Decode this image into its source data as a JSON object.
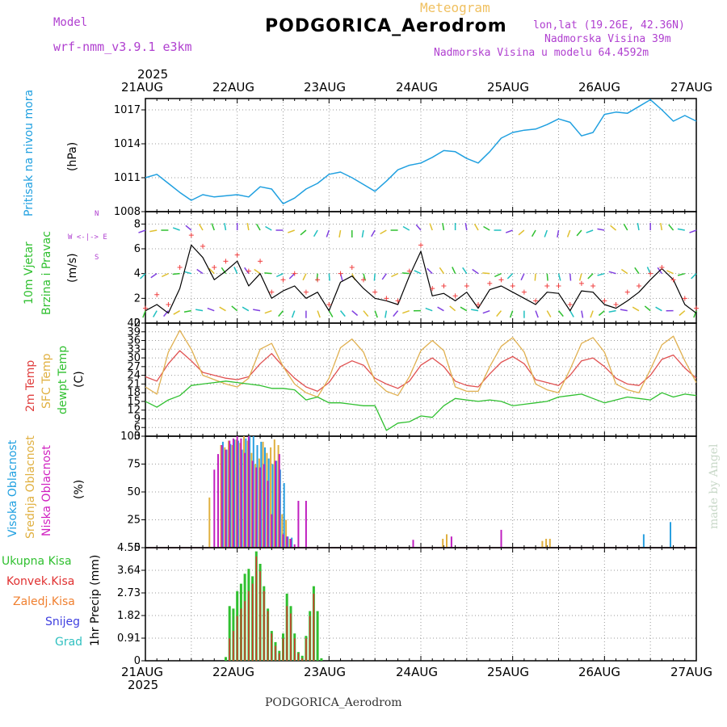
{
  "header": {
    "model_label": "Model",
    "model_name": "wrf-nmm_v3.9.1 e3km",
    "chart_kind": "Meteogram",
    "station": "PODGORICA_Aerodrom",
    "coords": "lon,lat (19.26E, 42.36N)",
    "altitude": "Nadmorska Visina 39m",
    "model_altitude": "Nadmorska Visina u modelu 64.4592m",
    "footer_station": "PODGORICA_Aerodrom",
    "credit": "made by Angel"
  },
  "time_axis": {
    "year": "2025",
    "labels": [
      "21AUG",
      "22AUG",
      "23AUG",
      "24AUG",
      "25AUG",
      "26AUG",
      "27AUG"
    ]
  },
  "panel_labels": {
    "pressure": [
      "Pritisak na nivou mora",
      "(hPa)"
    ],
    "wind": [
      "10m Vjetar",
      "Brzina i Pravac",
      "(m/s)"
    ],
    "compass": [
      "N",
      "W <-|-> E",
      "S"
    ],
    "temp": [
      "2m Temp",
      "SFC Temp",
      "dewpt Temp",
      "(C)"
    ],
    "cloud": [
      "Visoka Oblacnost",
      "Srednja Oblacnost",
      "Niska Oblacnost",
      "(%)"
    ],
    "precip_legend": [
      "Ukupna Kisa",
      "Konvek.Kisa",
      "Zaledj.Kisa",
      "Snijeg",
      "Grad"
    ],
    "precip_axis": "1hr Precip (mm)"
  },
  "colors": {
    "pressure": "#20a0e0",
    "temp2m": "#e05050",
    "sfc": "#e0b050",
    "dewpt": "#30c030",
    "high_cloud": "#2aa0e0",
    "mid_cloud": "#e0b040",
    "low_cloud": "#c020c0",
    "total_rain": "#30c030",
    "conv_rain": "#e03030",
    "freeze_rain": "#f08030",
    "snow": "#4040e0",
    "hail": "#30c0c0",
    "wind_line": "#000000",
    "gust": "#f04040"
  },
  "chart_data": [
    {
      "type": "line",
      "name": "pressure",
      "title": "Pritisak na nivou mora",
      "ylabel": "hPa",
      "ylim": [
        1008,
        1018
      ],
      "yticks": [
        1008,
        1011,
        1014,
        1017
      ],
      "xlim": [
        0,
        144
      ],
      "x": [
        0,
        3,
        6,
        9,
        12,
        15,
        18,
        21,
        24,
        27,
        30,
        33,
        36,
        39,
        42,
        45,
        48,
        51,
        54,
        57,
        60,
        63,
        66,
        69,
        72,
        75,
        78,
        81,
        84,
        87,
        90,
        93,
        96,
        99,
        102,
        105,
        108,
        111,
        114,
        117,
        120,
        123,
        126,
        129,
        132,
        135,
        138,
        141,
        144
      ],
      "values": [
        1011.0,
        1011.3,
        1010.5,
        1009.7,
        1009.0,
        1009.5,
        1009.3,
        1009.4,
        1009.5,
        1009.3,
        1010.2,
        1010.0,
        1008.7,
        1009.2,
        1010.0,
        1010.5,
        1011.3,
        1011.5,
        1011.0,
        1010.4,
        1009.8,
        1010.7,
        1011.7,
        1012.1,
        1012.3,
        1012.8,
        1013.4,
        1013.3,
        1012.7,
        1012.3,
        1013.3,
        1014.5,
        1015.0,
        1015.2,
        1015.3,
        1015.7,
        1016.2,
        1015.9,
        1014.7,
        1015.0,
        1016.6,
        1016.8,
        1016.7,
        1017.3,
        1017.9,
        1017.0,
        1016.0,
        1016.5,
        1016.0
      ]
    },
    {
      "type": "line",
      "name": "wind",
      "title": "10m Vjetar Brzina i Pravac",
      "ylabel": "m/s",
      "ylim": [
        0,
        9
      ],
      "yticks": [
        0,
        2,
        4,
        6,
        8
      ],
      "xlim": [
        0,
        144
      ],
      "x": [
        0,
        3,
        6,
        9,
        12,
        15,
        18,
        21,
        24,
        27,
        30,
        33,
        36,
        39,
        42,
        45,
        48,
        51,
        54,
        57,
        60,
        63,
        66,
        69,
        72,
        75,
        78,
        81,
        84,
        87,
        90,
        93,
        96,
        99,
        102,
        105,
        108,
        111,
        114,
        117,
        120,
        123,
        126,
        129,
        132,
        135,
        138,
        141,
        144
      ],
      "speed": [
        1.0,
        1.5,
        0.8,
        2.8,
        6.3,
        5.3,
        3.5,
        4.2,
        5.0,
        3.0,
        4.0,
        2.0,
        2.6,
        3.0,
        2.0,
        2.5,
        1.0,
        3.3,
        3.8,
        2.8,
        2.0,
        1.8,
        1.5,
        3.8,
        5.8,
        2.2,
        2.4,
        1.8,
        2.5,
        1.2,
        2.7,
        3.0,
        2.5,
        2.0,
        1.5,
        2.5,
        2.4,
        1.0,
        2.6,
        2.5,
        1.5,
        1.2,
        1.8,
        2.5,
        3.5,
        4.4,
        3.5,
        1.5,
        0.8
      ],
      "gust": [
        1.2,
        2.3,
        1.5,
        4.5,
        7.1,
        6.2,
        4.5,
        5.0,
        5.5,
        4.2,
        5.0,
        2.5,
        3.5,
        4.0,
        2.5,
        3.5,
        1.5,
        4.0,
        4.5,
        3.5,
        2.5,
        2.0,
        1.8,
        4.2,
        6.3,
        2.8,
        3.0,
        2.2,
        3.0,
        1.5,
        3.2,
        3.5,
        3.0,
        2.5,
        1.8,
        3.0,
        3.0,
        1.5,
        3.2,
        3.0,
        1.8,
        1.5,
        2.5,
        3.0,
        4.0,
        4.5,
        3.5,
        2.0,
        1.2
      ],
      "wind_dir_deg": [
        200,
        210,
        220,
        240,
        260,
        280,
        290,
        300,
        310,
        300,
        280,
        250,
        220,
        200,
        180,
        160,
        150,
        140,
        130,
        140,
        160,
        190,
        220,
        250,
        270,
        290,
        300,
        310,
        300,
        280,
        250,
        220,
        200,
        180,
        160,
        150,
        140,
        150,
        170,
        200,
        230,
        260,
        280,
        300,
        310,
        300,
        270,
        230,
        200
      ]
    },
    {
      "type": "line",
      "name": "temperature",
      "title": "Temperature",
      "ylabel": "C",
      "ylim": [
        3,
        42
      ],
      "yticks": [
        3,
        6,
        9,
        12,
        15,
        18,
        21,
        24,
        27,
        30,
        33,
        36,
        39,
        42
      ],
      "xlim": [
        0,
        144
      ],
      "series": [
        {
          "name": "2m Temp",
          "x": [
            0,
            3,
            6,
            9,
            12,
            15,
            18,
            21,
            24,
            27,
            30,
            33,
            36,
            39,
            42,
            45,
            48,
            51,
            54,
            57,
            60,
            63,
            66,
            69,
            72,
            75,
            78,
            81,
            84,
            87,
            90,
            93,
            96,
            99,
            102,
            105,
            108,
            111,
            114,
            117,
            120,
            123,
            126,
            129,
            132,
            135,
            138,
            141,
            144
          ],
          "values": [
            23.5,
            22.0,
            28.0,
            32.5,
            29.0,
            25.0,
            24.0,
            23.0,
            22.5,
            23.5,
            28.0,
            31.5,
            27.0,
            23.0,
            20.0,
            18.5,
            21.5,
            27.0,
            29.0,
            27.5,
            23.0,
            21.0,
            19.5,
            22.0,
            27.5,
            30.0,
            27.0,
            22.0,
            20.5,
            20.0,
            24.5,
            28.5,
            30.5,
            28.0,
            22.5,
            21.5,
            20.5,
            24.0,
            29.0,
            30.0,
            27.0,
            23.0,
            21.0,
            20.5,
            24.0,
            29.5,
            31.0,
            26.5,
            23.0
          ]
        },
        {
          "name": "SFC Temp",
          "x": [
            0,
            3,
            6,
            9,
            12,
            15,
            18,
            21,
            24,
            27,
            30,
            33,
            36,
            39,
            42,
            45,
            48,
            51,
            54,
            57,
            60,
            63,
            66,
            69,
            72,
            75,
            78,
            81,
            84,
            87,
            90,
            93,
            96,
            99,
            102,
            105,
            108,
            111,
            114,
            117,
            120,
            123,
            126,
            129,
            132,
            135,
            138,
            141,
            144
          ],
          "values": [
            20.0,
            17.5,
            32.0,
            39.5,
            33.0,
            24.0,
            22.5,
            21.0,
            20.0,
            23.0,
            33.0,
            35.0,
            27.0,
            21.0,
            18.0,
            16.5,
            23.0,
            33.5,
            36.5,
            32.0,
            22.0,
            18.5,
            17.0,
            23.5,
            32.5,
            36.0,
            32.5,
            20.0,
            18.5,
            18.5,
            27.0,
            34.0,
            37.0,
            32.0,
            21.0,
            19.0,
            18.0,
            26.0,
            35.0,
            37.0,
            32.0,
            21.0,
            19.0,
            18.0,
            26.0,
            34.5,
            37.5,
            29.0,
            21.5
          ]
        },
        {
          "name": "dewpt Temp",
          "x": [
            0,
            3,
            6,
            9,
            12,
            15,
            18,
            21,
            24,
            27,
            30,
            33,
            36,
            39,
            42,
            45,
            48,
            51,
            54,
            57,
            60,
            63,
            66,
            69,
            72,
            75,
            78,
            81,
            84,
            87,
            90,
            93,
            96,
            99,
            102,
            105,
            108,
            111,
            114,
            117,
            120,
            123,
            126,
            129,
            132,
            135,
            138,
            141,
            144
          ],
          "values": [
            15.0,
            13.0,
            15.5,
            17.0,
            20.5,
            21.0,
            21.5,
            22.0,
            21.5,
            21.0,
            20.5,
            19.5,
            19.5,
            19.0,
            15.5,
            16.5,
            14.5,
            14.5,
            14.0,
            13.5,
            13.5,
            5.0,
            7.5,
            8.0,
            10.0,
            9.5,
            13.5,
            16.0,
            15.5,
            15.0,
            15.5,
            15.0,
            13.5,
            14.0,
            14.5,
            15.0,
            16.5,
            17.0,
            17.5,
            16.0,
            14.5,
            15.5,
            16.5,
            16.0,
            15.5,
            18.0,
            16.5,
            17.5,
            17.0
          ]
        }
      ]
    },
    {
      "type": "bar",
      "name": "cloud_cover",
      "title": "Oblacnost",
      "ylabel": "%",
      "ylim": [
        0,
        100
      ],
      "yticks": [
        0,
        25,
        50,
        75,
        100
      ],
      "xlim": [
        0,
        144
      ],
      "series": [
        {
          "name": "Visoka Oblacnost",
          "x": [
            17,
            18,
            19,
            20,
            21,
            22,
            23,
            24,
            25,
            26,
            27,
            28,
            29,
            30,
            31,
            32,
            33,
            34,
            35,
            36,
            37,
            38,
            130,
            137
          ],
          "values": [
            0,
            0,
            0,
            95,
            88,
            93,
            97,
            96,
            88,
            98,
            100,
            100,
            92,
            95,
            90,
            80,
            75,
            78,
            70,
            58,
            10,
            9,
            12,
            23
          ]
        },
        {
          "name": "Srednja Oblacnost",
          "x": [
            17,
            19,
            20,
            21,
            22,
            23,
            24,
            25,
            26,
            27,
            28,
            29,
            30,
            31,
            32,
            33,
            34,
            35,
            36,
            37,
            38,
            78,
            79,
            104,
            105,
            106
          ],
          "values": [
            45,
            0,
            92,
            90,
            96,
            92,
            97,
            94,
            100,
            96,
            85,
            75,
            80,
            95,
            85,
            90,
            97,
            92,
            30,
            25,
            8,
            8,
            12,
            6,
            8,
            8
          ]
        },
        {
          "name": "Niska Oblacnost",
          "x": [
            18,
            19,
            20,
            21,
            22,
            23,
            24,
            25,
            26,
            27,
            28,
            29,
            30,
            31,
            32,
            33,
            34,
            35,
            36,
            37,
            38,
            39,
            40,
            42,
            70,
            80,
            93
          ],
          "values": [
            70,
            84,
            92,
            88,
            96,
            98,
            100,
            98,
            85,
            100,
            78,
            72,
            72,
            75,
            60,
            30,
            78,
            84,
            12,
            10,
            8,
            3,
            42,
            42,
            7,
            10,
            16
          ]
        }
      ]
    },
    {
      "type": "bar",
      "name": "precipitation",
      "title": "1hr Precip",
      "ylabel": "mm",
      "ylim": [
        0,
        4.55
      ],
      "yticks": [
        0,
        0.91,
        1.82,
        2.73,
        3.64,
        4.55
      ],
      "xlim": [
        0,
        144
      ],
      "series": [
        {
          "name": "Ukupna Kisa",
          "x": [
            21,
            22,
            23,
            24,
            25,
            26,
            27,
            28,
            29,
            30,
            31,
            32,
            33,
            34,
            35,
            36,
            37,
            38,
            39,
            40,
            41,
            42,
            43,
            44,
            45,
            46
          ],
          "values": [
            0.15,
            2.2,
            2.1,
            2.8,
            3.1,
            3.5,
            3.7,
            3.4,
            4.4,
            3.9,
            3.0,
            2.1,
            1.2,
            0.75,
            0.4,
            1.1,
            2.7,
            2.2,
            1.1,
            0.35,
            0.2,
            1.0,
            2.0,
            3.0,
            2.0,
            0.1
          ]
        },
        {
          "name": "Konvek.Kisa",
          "x": [
            22,
            23,
            24,
            25,
            26,
            27,
            28,
            29,
            30,
            31,
            32,
            33,
            34,
            35,
            36,
            37,
            38,
            39,
            40,
            41,
            42,
            43,
            44
          ],
          "values": [
            0.9,
            1.2,
            1.8,
            2.1,
            2.4,
            2.8,
            3.1,
            4.2,
            3.6,
            2.8,
            2.0,
            1.1,
            0.6,
            0.3,
            0.9,
            2.2,
            1.9,
            0.9,
            0.3,
            0.1,
            0.9,
            1.8,
            2.7
          ]
        },
        {
          "name": "Zaledj.Kisa",
          "x": [],
          "values": []
        },
        {
          "name": "Snijeg",
          "x": [],
          "values": []
        },
        {
          "name": "Grad",
          "x": [],
          "values": []
        }
      ]
    }
  ]
}
